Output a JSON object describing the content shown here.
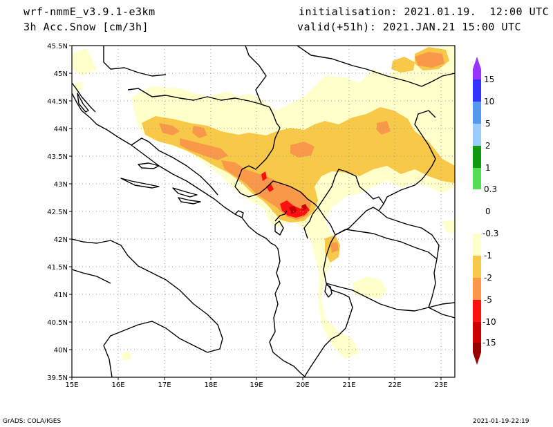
{
  "header": {
    "model": "wrf-nmmE_v3.9.1-e3km",
    "field": "3h Acc.Snow [cm/3h]",
    "initialisation_label": "initialisation:",
    "initialisation_value": "2021.01.19.  12:00 UTC",
    "valid_label": "valid(+51h):",
    "valid_value": "2021.JAN.21 15:00 UTC"
  },
  "footer": {
    "credit": "GrADS: COLA/IGES",
    "timestamp": "2021-01-19-22:19"
  },
  "map": {
    "lon_ticks": [
      "15E",
      "16E",
      "17E",
      "18E",
      "19E",
      "20E",
      "21E",
      "22E",
      "23E"
    ],
    "lat_ticks": [
      "45.5N",
      "45N",
      "44.5N",
      "44N",
      "43.5N",
      "43N",
      "42.5N",
      "42N",
      "41.5N",
      "41N",
      "40.5N",
      "40N",
      "39.5N"
    ],
    "lon_range": [
      15,
      23.3
    ],
    "lat_range": [
      39.5,
      45.5
    ]
  },
  "colorbar": {
    "labels": [
      "15",
      "10",
      "5",
      "2",
      "1",
      "0.3",
      "0",
      "-0.3",
      "-1",
      "-2",
      "-5",
      "-10",
      "-15"
    ],
    "colors": [
      "#9933ff",
      "#3333ff",
      "#5599ee",
      "#99ccff",
      "#119911",
      "#55dd55",
      "#88ee88",
      "#ffffff",
      "#ffffcc",
      "#f8c848",
      "#f89848",
      "#ff1010",
      "#cc0000",
      "#990000",
      "#660000"
    ]
  },
  "snow_colors": {
    "light": "#ffffcc",
    "moderate": "#f8c848",
    "heavy": "#f89848",
    "intense": "#ff1010",
    "extreme": "#cc0000"
  }
}
